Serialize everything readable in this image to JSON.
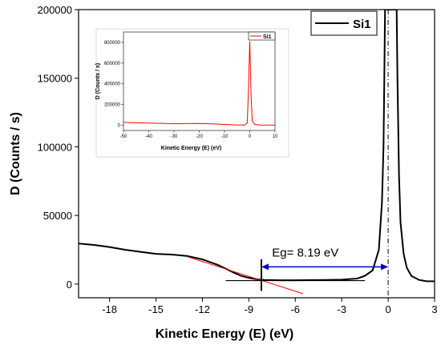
{
  "chart_data": [
    {
      "type": "line",
      "role": "main",
      "xlabel": "Kinetic Energy (E) (eV)",
      "ylabel": "D (Counts / s)",
      "xlim": [
        -20,
        3
      ],
      "ylim": [
        -10000,
        200000
      ],
      "xticks": [
        -18,
        -15,
        -12,
        -9,
        -6,
        -3,
        0,
        3
      ],
      "xtick_labels": [
        "-18",
        "-15",
        "-12",
        "-9",
        "-6",
        "-3",
        "0",
        "3"
      ],
      "yticks": [
        0,
        50000,
        100000,
        150000,
        200000
      ],
      "ytick_labels": [
        "0",
        "50000",
        "100000",
        "150000",
        "200000"
      ],
      "legend": {
        "position": "top-right",
        "entries": [
          {
            "label": "Si1",
            "color": "#000000"
          }
        ]
      },
      "series": [
        {
          "name": "Si1",
          "color": "#000000",
          "x": [
            -20,
            -19,
            -18,
            -17,
            -16,
            -15,
            -14,
            -13,
            -12,
            -11,
            -10,
            -9.5,
            -9,
            -8.5,
            -8,
            -7,
            -6,
            -5,
            -4,
            -3,
            -2,
            -1.5,
            -1,
            -0.6,
            -0.4,
            -0.3,
            -0.25,
            -0.2,
            -0.15,
            0.55,
            0.6,
            0.7,
            0.8,
            1.0,
            1.2,
            1.5,
            2.0,
            2.5,
            3.0
          ],
          "y": [
            29500,
            28500,
            27000,
            25000,
            23500,
            22000,
            21500,
            20500,
            18000,
            14000,
            8500,
            6000,
            4500,
            3500,
            3000,
            2800,
            2800,
            2900,
            3000,
            3200,
            4000,
            6000,
            10000,
            25000,
            60000,
            100000,
            150000,
            200000,
            200000,
            200000,
            150000,
            80000,
            45000,
            22000,
            12000,
            6000,
            3000,
            2000,
            2000
          ]
        }
      ],
      "annotations": [
        {
          "type": "line",
          "color": "#ff0000",
          "x": [
            -13,
            -5.5
          ],
          "y": [
            20000,
            -7000
          ]
        },
        {
          "type": "line",
          "color": "#000000",
          "x": [
            -10.5,
            -1.5
          ],
          "y": [
            2500,
            2500
          ]
        },
        {
          "type": "vline",
          "color": "#000000",
          "x": -8.19,
          "y": [
            -5000,
            18000
          ]
        },
        {
          "type": "vline",
          "color": "#000000",
          "style": "dashdot",
          "x": 0
        },
        {
          "type": "double-arrow",
          "color": "#0000cc",
          "x": [
            -8.19,
            0
          ],
          "y": 12500
        },
        {
          "type": "text",
          "text": "Eg= 8.19 eV",
          "x": -7.5,
          "y": 20000
        }
      ]
    },
    {
      "type": "line",
      "role": "inset",
      "xlabel": "Kinetic Energy (E) (eV)",
      "ylabel": "D (Counts / s)",
      "xlim": [
        -50,
        10
      ],
      "ylim": [
        -50000,
        900000
      ],
      "xticks": [
        -50,
        -40,
        -30,
        -20,
        -10,
        0,
        10
      ],
      "xtick_labels": [
        "-50",
        "-40",
        "-30",
        "-20",
        "-10",
        "0",
        "10"
      ],
      "yticks": [
        0,
        200000,
        400000,
        600000,
        800000
      ],
      "ytick_labels": [
        "0",
        "200000",
        "400000",
        "600000",
        "800000"
      ],
      "legend": {
        "position": "top-right",
        "entries": [
          {
            "label": "Si1",
            "color": "#ff0000"
          }
        ]
      },
      "series": [
        {
          "name": "Si1",
          "color": "#ff0000",
          "x": [
            -50,
            -40,
            -30,
            -20,
            -15,
            -10,
            -5,
            -2,
            -1,
            -0.5,
            0,
            0.5,
            1,
            2,
            4,
            10
          ],
          "y": [
            28000,
            22000,
            16000,
            18000,
            14000,
            8000,
            3000,
            3000,
            25000,
            350000,
            810000,
            300000,
            40000,
            8000,
            3000,
            2000
          ]
        }
      ]
    }
  ]
}
